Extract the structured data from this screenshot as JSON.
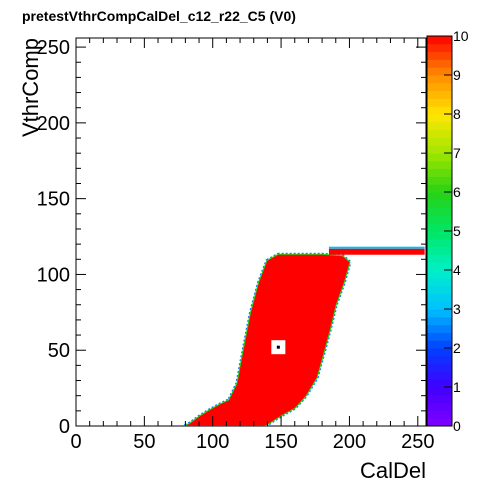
{
  "chart_data": {
    "type": "heatmap",
    "title": "pretestVthrCompCalDel_c12_r22_C5 (V0)",
    "xlabel": "CalDel",
    "ylabel": "VthrComp",
    "xlim": [
      0,
      256
    ],
    "ylim": [
      0,
      256
    ],
    "zlim": [
      0,
      10
    ],
    "x_ticks": [
      0,
      50,
      100,
      150,
      200,
      250
    ],
    "y_ticks": [
      0,
      50,
      100,
      150,
      200,
      250
    ],
    "z_ticks": [
      0,
      1,
      2,
      3,
      4,
      5,
      6,
      7,
      8,
      9,
      10
    ],
    "efficient_region": {
      "value": 10,
      "polygon": [
        [
          80,
          0
        ],
        [
          84,
          2
        ],
        [
          90,
          6
        ],
        [
          97,
          10
        ],
        [
          105,
          14
        ],
        [
          112,
          17
        ],
        [
          118,
          28
        ],
        [
          123,
          52
        ],
        [
          128,
          75
        ],
        [
          134,
          95
        ],
        [
          140,
          109
        ],
        [
          148,
          113
        ],
        [
          165,
          113
        ],
        [
          180,
          113
        ],
        [
          195,
          112
        ],
        [
          200,
          108
        ],
        [
          196,
          95
        ],
        [
          190,
          80
        ],
        [
          186,
          65
        ],
        [
          181,
          48
        ],
        [
          176,
          32
        ],
        [
          168,
          20
        ],
        [
          160,
          12
        ],
        [
          150,
          7
        ],
        [
          143,
          3
        ],
        [
          138,
          0
        ]
      ]
    },
    "plateau": {
      "value": 10,
      "x": [
        185,
        255
      ],
      "y": [
        113,
        117
      ]
    },
    "hot_pixel": {
      "x": 148,
      "y": 52,
      "value": 0
    }
  }
}
